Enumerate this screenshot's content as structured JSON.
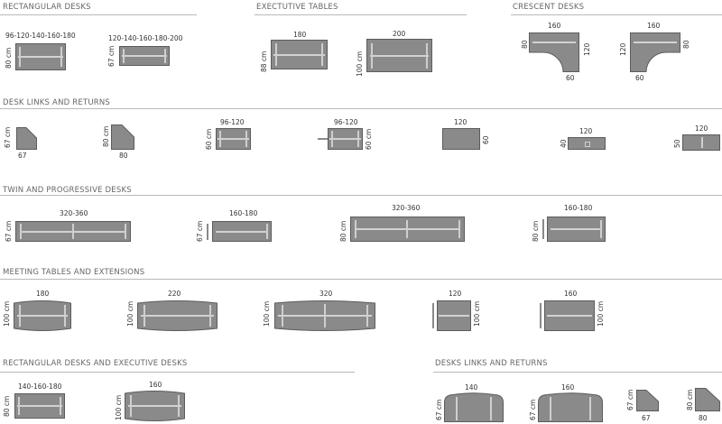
{
  "sections": {
    "rectangular_desks": "RECTANGULAR DESKS",
    "executive_tables": "EXECTUTIVE TABLES",
    "crescent_desks": "CRESCENT DESKS",
    "desk_links_returns": "DESK LINKS AND RETURNS",
    "twin_progressive": "TWIN AND PROGRESSIVE DESKS",
    "meeting_tables": "MEETING TABLES AND EXTENSIONS",
    "rect_exec": "RECTANGULAR DESKS AND EXECUTIVE DESKS",
    "desks_links_returns": "DESKS LINKS AND RETURNS"
  },
  "row1": {
    "rd1": {
      "w": "96-120-140-160-180",
      "d": "80 cm"
    },
    "rd2": {
      "w": "120-140-160-180-200",
      "d": "67 cm"
    },
    "et1": {
      "w": "180",
      "d": "88 cm"
    },
    "et2": {
      "w": "200",
      "d": "100 cm"
    },
    "cd1": {
      "top": "160",
      "left": "80",
      "right": "120",
      "bottom": "60"
    },
    "cd2": {
      "top": "160",
      "left": "120",
      "right": "80",
      "bottom": "60"
    }
  },
  "row2": {
    "l1": {
      "d": "67 cm",
      "w": "67"
    },
    "l2": {
      "d": "80 cm",
      "w": "80"
    },
    "l3": {
      "w": "96-120",
      "d": "60 cm"
    },
    "l4": {
      "w": "96-120",
      "d": "60 cm"
    },
    "l5": {
      "w": "120",
      "d": "60"
    },
    "l6": {
      "w": "120",
      "d": "40"
    },
    "l7": {
      "w": "120",
      "d": "50"
    }
  },
  "row3": {
    "t1": {
      "w": "320-360",
      "d": "67 cm"
    },
    "t2": {
      "w": "160-180",
      "d": "67 cm"
    },
    "t3": {
      "w": "320-360",
      "d": "80 cm"
    },
    "t4": {
      "w": "160-180",
      "d": "80 cm"
    }
  },
  "row4": {
    "m1": {
      "w": "180",
      "d": "100 cm"
    },
    "m2": {
      "w": "220",
      "d": "100 cm"
    },
    "m3": {
      "w": "320",
      "d": "100 cm"
    },
    "m4": {
      "w": "120",
      "d": "100 cm"
    },
    "m5": {
      "w": "160",
      "d": "100 cm"
    }
  },
  "row5": {
    "r1": {
      "w": "140-160-180",
      "d": "80 cm"
    },
    "r2": {
      "w": "160",
      "d": "100 cm"
    },
    "r3": {
      "w": "140",
      "d": "67 cm"
    },
    "r4": {
      "w": "160",
      "d": "67 cm"
    },
    "r5": {
      "d": "67 cm",
      "w": "67"
    },
    "r6": {
      "d": "80 cm",
      "w": "80"
    }
  }
}
